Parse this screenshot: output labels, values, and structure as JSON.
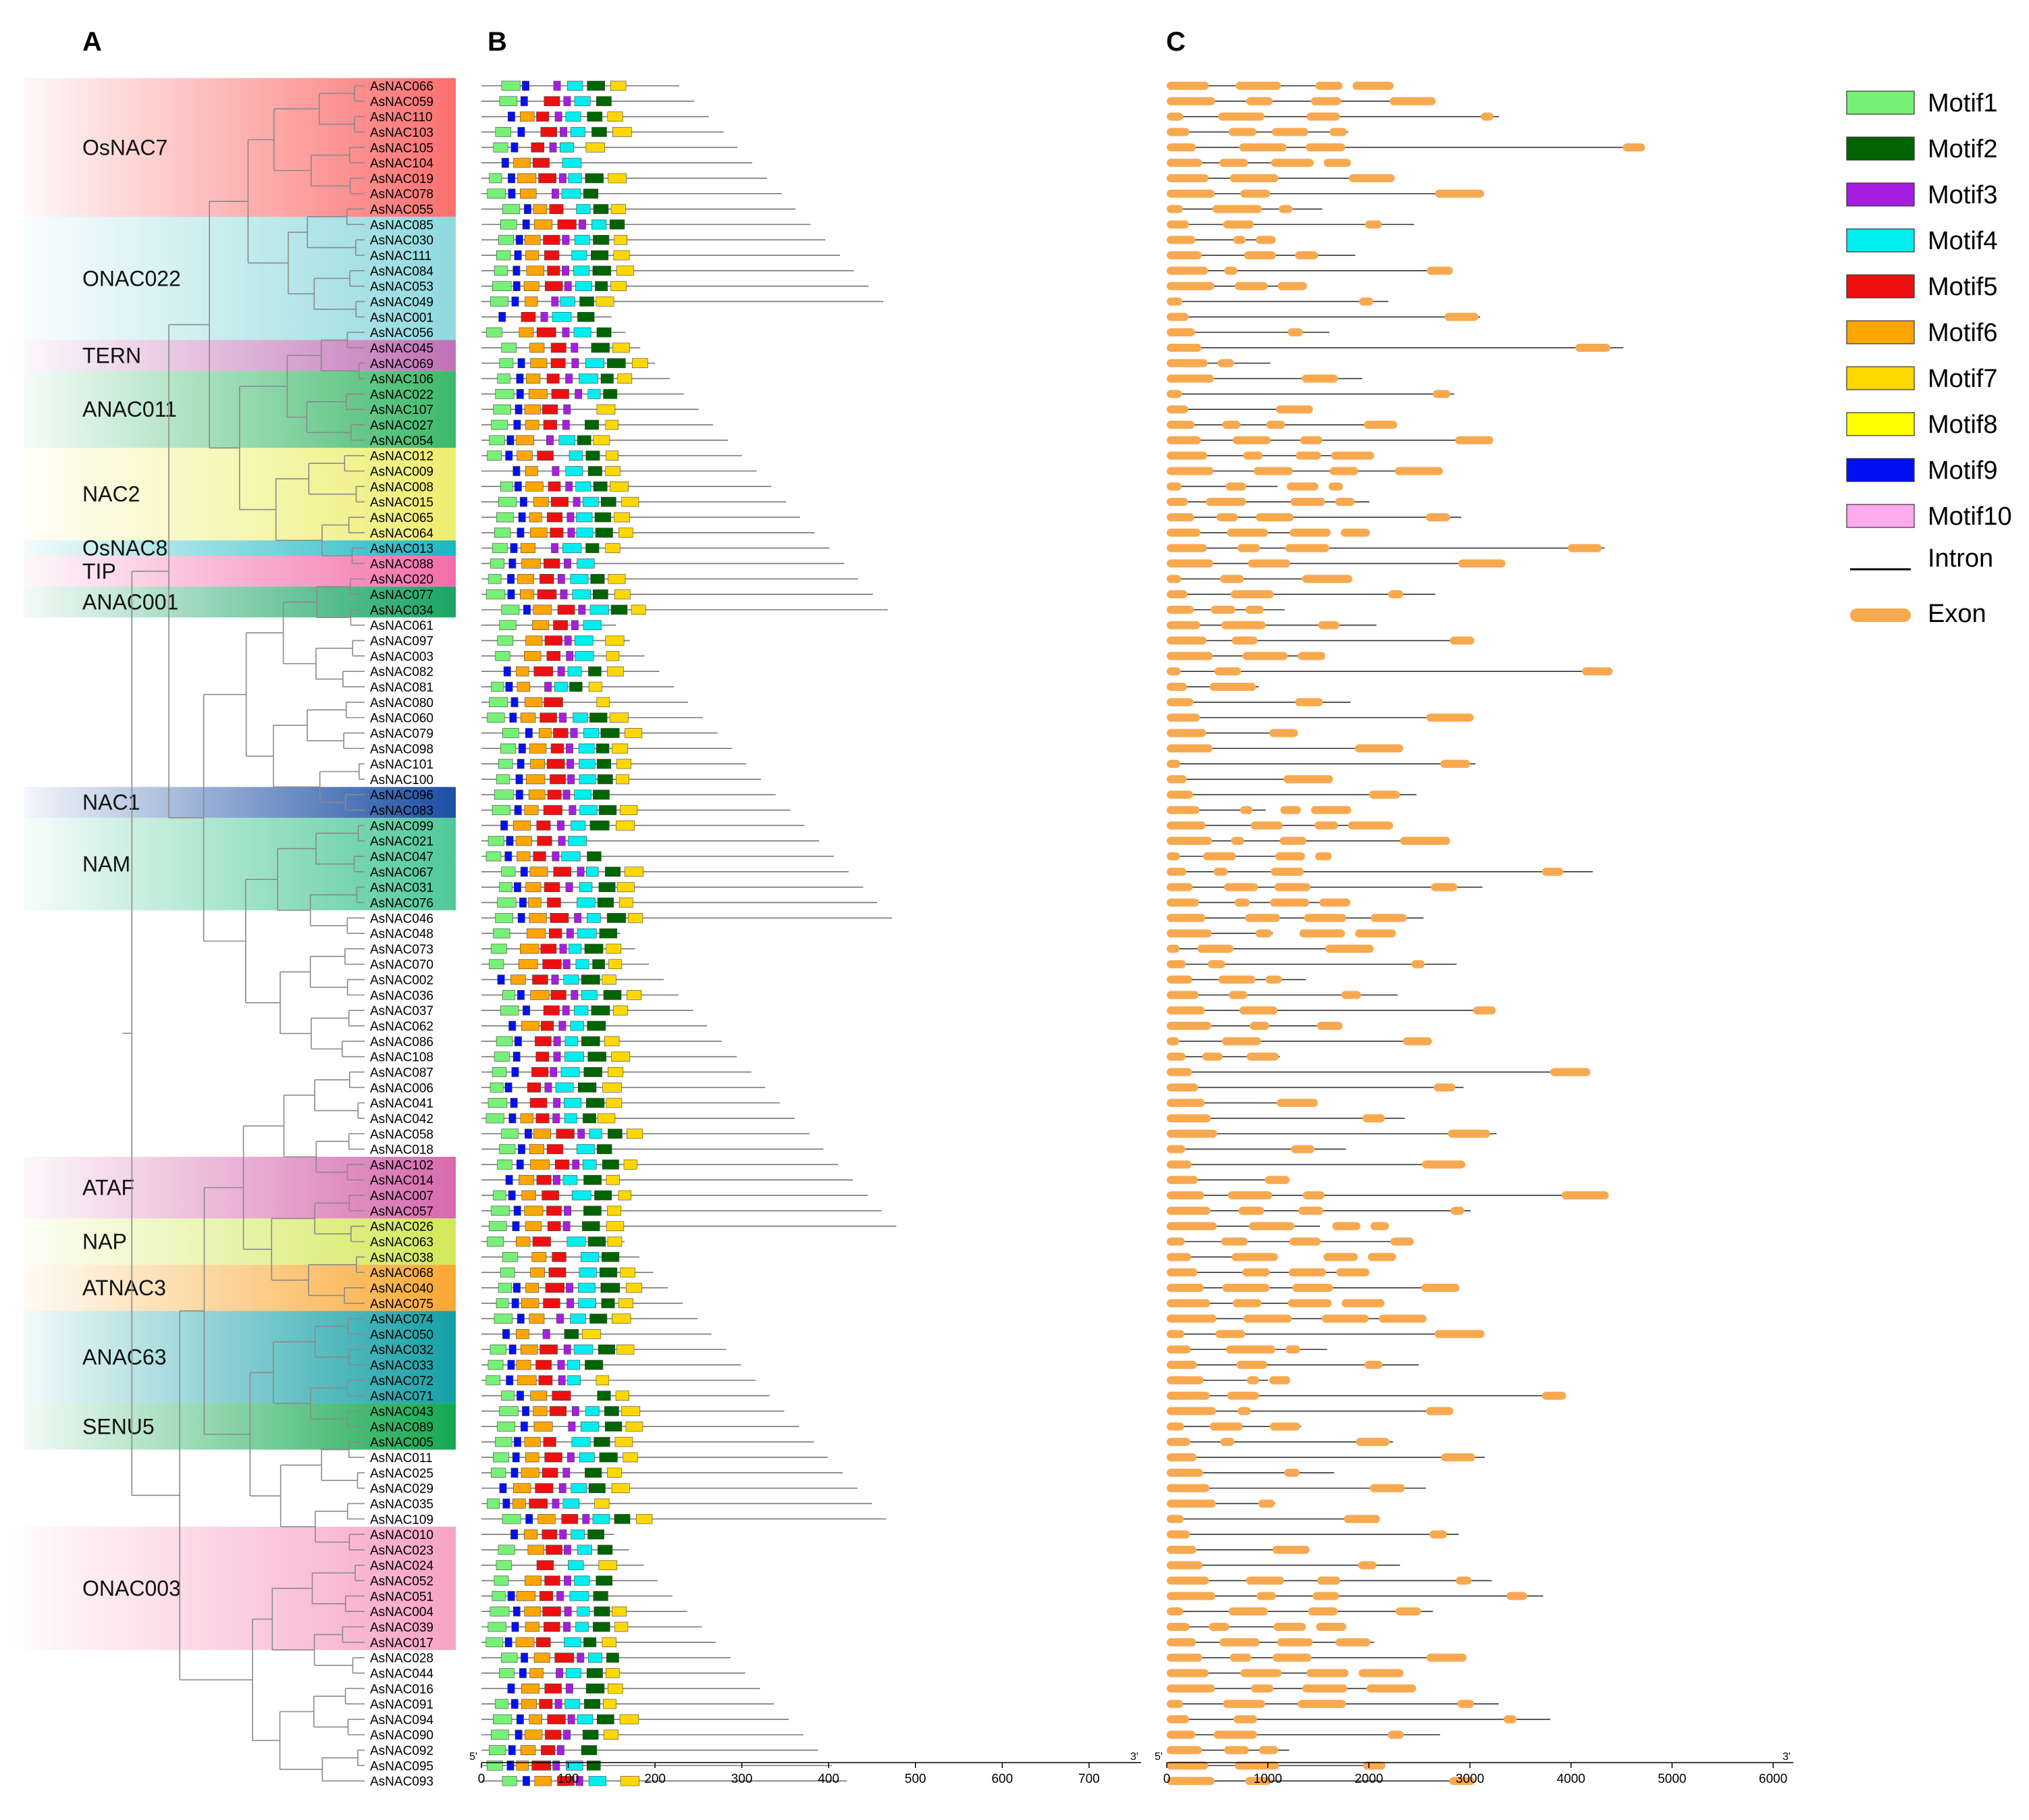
{
  "panels": {
    "a": "A",
    "b": "B",
    "c": "C"
  },
  "genes": [
    "AsNAC066",
    "AsNAC059",
    "AsNAC110",
    "AsNAC103",
    "AsNAC105",
    "AsNAC104",
    "AsNAC019",
    "AsNAC078",
    "AsNAC055",
    "AsNAC085",
    "AsNAC030",
    "AsNAC111",
    "AsNAC084",
    "AsNAC053",
    "AsNAC049",
    "AsNAC001",
    "AsNAC056",
    "AsNAC045",
    "AsNAC069",
    "AsNAC106",
    "AsNAC022",
    "AsNAC107",
    "AsNAC027",
    "AsNAC054",
    "AsNAC012",
    "AsNAC009",
    "AsNAC008",
    "AsNAC015",
    "AsNAC065",
    "AsNAC064",
    "AsNAC013",
    "AsNAC088",
    "AsNAC020",
    "AsNAC077",
    "AsNAC034",
    "AsNAC061",
    "AsNAC097",
    "AsNAC003",
    "AsNAC082",
    "AsNAC081",
    "AsNAC080",
    "AsNAC060",
    "AsNAC079",
    "AsNAC098",
    "AsNAC101",
    "AsNAC100",
    "AsNAC096",
    "AsNAC083",
    "AsNAC099",
    "AsNAC021",
    "AsNAC047",
    "AsNAC067",
    "AsNAC031",
    "AsNAC076",
    "AsNAC046",
    "AsNAC048",
    "AsNAC073",
    "AsNAC070",
    "AsNAC002",
    "AsNAC036",
    "AsNAC037",
    "AsNAC062",
    "AsNAC086",
    "AsNAC108",
    "AsNAC087",
    "AsNAC006",
    "AsNAC041",
    "AsNAC042",
    "AsNAC058",
    "AsNAC018",
    "AsNAC102",
    "AsNAC014",
    "AsNAC007",
    "AsNAC057",
    "AsNAC026",
    "AsNAC063",
    "AsNAC038",
    "AsNAC068",
    "AsNAC040",
    "AsNAC075",
    "AsNAC074",
    "AsNAC050",
    "AsNAC032",
    "AsNAC033",
    "AsNAC072",
    "AsNAC071",
    "AsNAC043",
    "AsNAC089",
    "AsNAC005",
    "AsNAC011",
    "AsNAC025",
    "AsNAC029",
    "AsNAC035",
    "AsNAC109",
    "AsNAC010",
    "AsNAC023",
    "AsNAC024",
    "AsNAC052",
    "AsNAC051",
    "AsNAC004",
    "AsNAC039",
    "AsNAC017",
    "AsNAC028",
    "AsNAC044",
    "AsNAC016",
    "AsNAC091",
    "AsNAC094",
    "AsNAC090",
    "AsNAC092",
    "AsNAC095",
    "AsNAC093"
  ],
  "groups": [
    {
      "name": "OsNAC7",
      "start": 0,
      "end": 8,
      "color": "#fb6f6f"
    },
    {
      "name": "ONAC022",
      "start": 9,
      "end": 16,
      "color": "#8fd9de"
    },
    {
      "name": "TERN",
      "start": 17,
      "end": 18,
      "color": "#c071b5"
    },
    {
      "name": "ANAC011",
      "start": 19,
      "end": 23,
      "color": "#3cb96a"
    },
    {
      "name": "NAC2",
      "start": 24,
      "end": 29,
      "color": "#eeee70"
    },
    {
      "name": "OsNAC8",
      "start": 30,
      "end": 30,
      "color": "#19b6c2"
    },
    {
      "name": "TIP",
      "start": 31,
      "end": 32,
      "color": "#f36da9"
    },
    {
      "name": "ANAC001",
      "start": 33,
      "end": 34,
      "color": "#1aa564"
    },
    {
      "name": "NAC1",
      "start": 46,
      "end": 47,
      "color": "#1c4ea3"
    },
    {
      "name": "NAM",
      "start": 48,
      "end": 53,
      "color": "#4fc99a"
    },
    {
      "name": "ATAF",
      "start": 70,
      "end": 73,
      "color": "#d66aad"
    },
    {
      "name": "NAP",
      "start": 74,
      "end": 76,
      "color": "#d3e858"
    },
    {
      "name": "ATNAC3",
      "start": 77,
      "end": 79,
      "color": "#f9a832"
    },
    {
      "name": "ANAC63",
      "start": 80,
      "end": 85,
      "color": "#14a0a6"
    },
    {
      "name": "SENU5",
      "start": 86,
      "end": 88,
      "color": "#14a850"
    },
    {
      "name": "ONAC003",
      "start": 94,
      "end": 101,
      "color": "#f7a3c3"
    }
  ],
  "motif_legend": [
    {
      "name": "Motif1",
      "color": "#77f077"
    },
    {
      "name": "Motif2",
      "color": "#006400"
    },
    {
      "name": "Motif3",
      "color": "#a51ee0"
    },
    {
      "name": "Motif4",
      "color": "#00eeee"
    },
    {
      "name": "Motif5",
      "color": "#ee1010"
    },
    {
      "name": "Motif6",
      "color": "#ffa500"
    },
    {
      "name": "Motif7",
      "color": "#ffd700"
    },
    {
      "name": "Motif8",
      "color": "#ffff00"
    },
    {
      "name": "Motif9",
      "color": "#0010f0"
    },
    {
      "name": "Motif10",
      "color": "#ffaaee"
    }
  ],
  "structure_legend": {
    "intron": "Intron",
    "exon": "Exon",
    "exon_color": "#f8a950"
  },
  "axis_b": {
    "ticks": [
      0,
      100,
      200,
      300,
      400,
      500,
      600,
      700
    ],
    "max": 760,
    "left_end": "5'",
    "right_end": "3'"
  },
  "axis_c": {
    "ticks": [
      0,
      1000,
      2000,
      3000,
      4000,
      5000,
      6000
    ],
    "max": 6200,
    "left_end": "5'",
    "right_end": "3'"
  }
}
